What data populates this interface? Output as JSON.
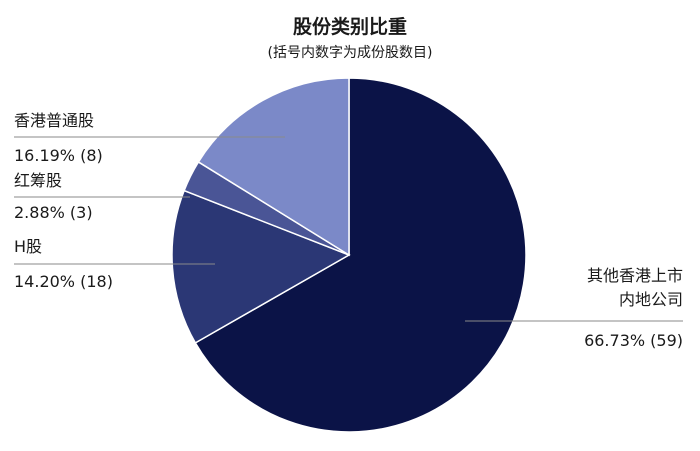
{
  "chart_data": {
    "type": "pie",
    "title": "股份类别比重",
    "subtitle": "(括号内数字为成份股数目)",
    "slices": [
      {
        "label_lines": [
          "其他香港上市",
          "内地公司"
        ],
        "percent": 66.73,
        "count": 59,
        "value_label": "66.73% (59)",
        "color": "#0b1347"
      },
      {
        "label_lines": [
          "H股"
        ],
        "percent": 14.2,
        "count": 18,
        "value_label": "14.20% (18)",
        "color": "#2b3775"
      },
      {
        "label_lines": [
          "红筹股"
        ],
        "percent": 2.88,
        "count": 3,
        "value_label": "2.88% (3)",
        "color": "#4a5596"
      },
      {
        "label_lines": [
          "香港普通股"
        ],
        "percent": 16.19,
        "count": 8,
        "value_label": "16.19% (8)",
        "color": "#7b89c8"
      }
    ],
    "legend": "none"
  }
}
